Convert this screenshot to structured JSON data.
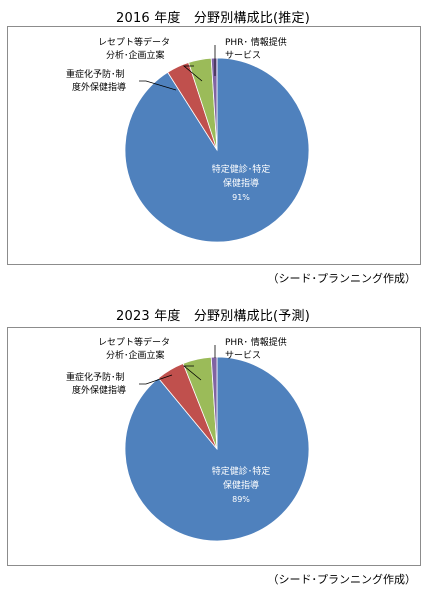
{
  "chart_data": [
    {
      "type": "pie",
      "title": "2016 年度　分野別構成比(推定)",
      "categories": [
        "特定健診･特定保健指導",
        "重症化予防･制度外保健指導",
        "レセプト等データ分析･企画立案",
        "PHR･情報提供サービス"
      ],
      "values": [
        91,
        4,
        4,
        1
      ],
      "data_label": "91%",
      "colors": [
        "#4F81BD",
        "#C0504D",
        "#9BBB59",
        "#8064A2"
      ]
    },
    {
      "type": "pie",
      "title": "2023 年度　分野別構成比(予測)",
      "categories": [
        "特定健診･特定保健指導",
        "重症化予防･制度外保健指導",
        "レセプト等データ分析･企画立案",
        "PHR･情報提供サービス"
      ],
      "values": [
        89,
        5,
        5,
        1
      ],
      "data_label": "89%",
      "colors": [
        "#4F81BD",
        "#C0504D",
        "#9BBB59",
        "#8064A2"
      ]
    }
  ],
  "labels": {
    "main_line1": "特定健診･特定",
    "main_line2": "保健指導",
    "severe_line1": "重症化予防･制",
    "severe_line2": "度外保健指導",
    "receipt_line1": "レセプト等データ",
    "receipt_line2": "分析･企画立案",
    "phr_line1": "PHR･ 情報提供",
    "phr_line2": "サービス"
  },
  "source": "（シード･プランニング作成）"
}
